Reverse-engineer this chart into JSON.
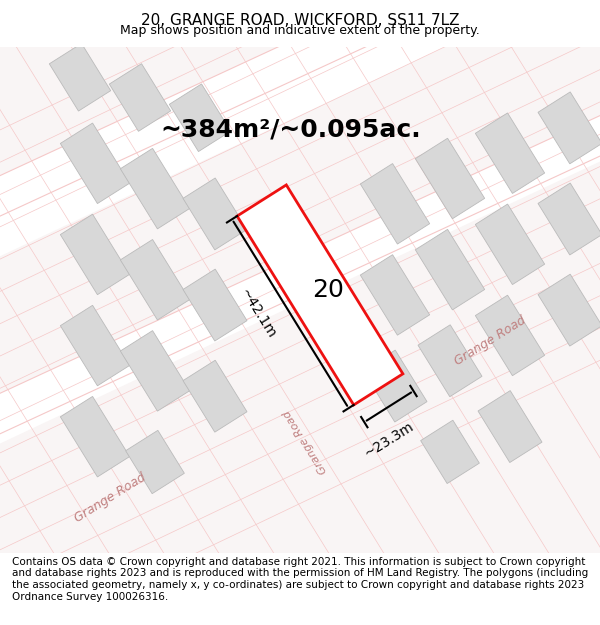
{
  "title": "20, GRANGE ROAD, WICKFORD, SS11 7LZ",
  "subtitle": "Map shows position and indicative extent of the property.",
  "area_text": "~384m²/~0.095ac.",
  "dim_height": "~42.1m",
  "dim_width": "~23.3m",
  "property_number": "20",
  "footer": "Contains OS data © Crown copyright and database right 2021. This information is subject to Crown copyright and database rights 2023 and is reproduced with the permission of HM Land Registry. The polygons (including the associated geometry, namely x, y co-ordinates) are subject to Crown copyright and database rights 2023 Ordnance Survey 100026316.",
  "bg_color": "#f5f0f0",
  "map_bg": "#f9f5f5",
  "road_color": "#f5c8c8",
  "building_fill": "#d8d8d8",
  "building_edge": "#bbbbbb",
  "plot_fill": "#ffffff",
  "plot_edge": "#ee1111",
  "road_label_color": "#c08080",
  "title_fontsize": 11,
  "subtitle_fontsize": 9,
  "area_fontsize": 18,
  "dim_fontsize": 10,
  "footer_fontsize": 7.5
}
